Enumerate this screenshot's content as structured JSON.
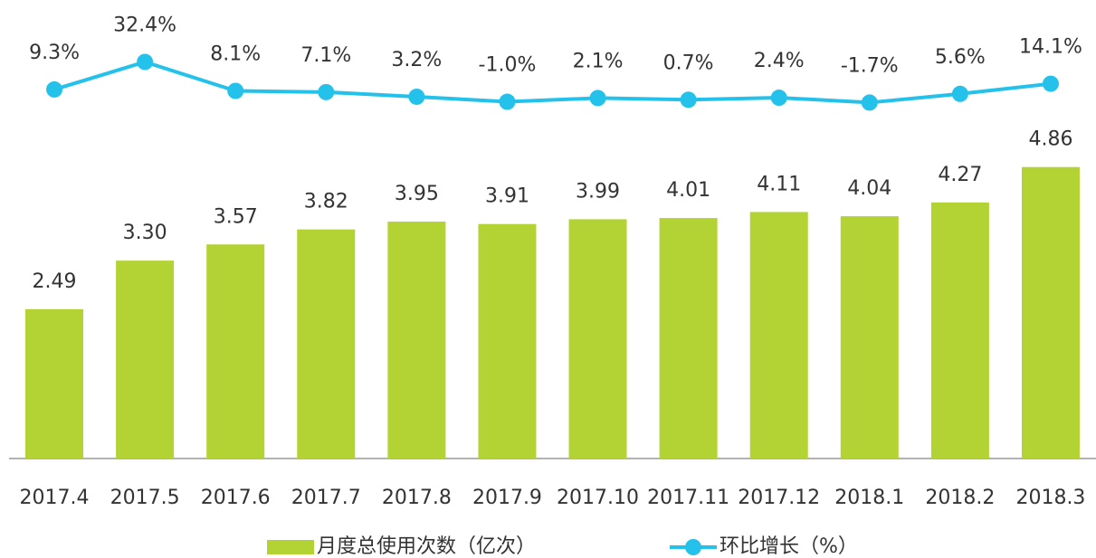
{
  "chart_data": {
    "type": "combo",
    "categories": [
      "2017.4",
      "2017.5",
      "2017.6",
      "2017.7",
      "2017.8",
      "2017.9",
      "2017.10",
      "2017.11",
      "2017.12",
      "2018.1",
      "2018.2",
      "2018.3"
    ],
    "series": [
      {
        "name": "月度总使用次数（亿次）",
        "type": "bar",
        "color": "#b3d234",
        "values": [
          2.49,
          3.3,
          3.57,
          3.82,
          3.95,
          3.91,
          3.99,
          4.01,
          4.11,
          4.04,
          4.27,
          4.86
        ],
        "value_labels": [
          "2.49",
          "3.30",
          "3.57",
          "3.82",
          "3.95",
          "3.91",
          "3.99",
          "4.01",
          "4.11",
          "4.04",
          "4.27",
          "4.86"
        ]
      },
      {
        "name": "环比增长（%）",
        "type": "line",
        "axis": "y2",
        "color": "#24c1ea",
        "values": [
          9.3,
          32.4,
          8.1,
          7.1,
          3.2,
          -1.0,
          2.1,
          0.7,
          2.4,
          -1.7,
          5.6,
          14.1
        ],
        "value_labels": [
          "9.3%",
          "32.4%",
          "8.1%",
          "7.1%",
          "3.2%",
          "-1.0%",
          "2.1%",
          "0.7%",
          "2.4%",
          "-1.7%",
          "5.6%",
          "14.1%"
        ]
      }
    ],
    "ylim": [
      0,
      7.6
    ],
    "y2lim": [
      -300,
      82
    ]
  }
}
